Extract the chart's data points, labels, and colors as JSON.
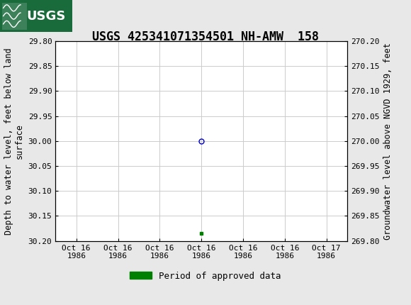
{
  "title": "USGS 425341071354501 NH-AMW  158",
  "ylabel_left": "Depth to water level, feet below land\nsurface",
  "ylabel_right": "Groundwater level above NGVD 1929, feet",
  "ylim_left_top": 29.8,
  "ylim_left_bottom": 30.2,
  "ylim_right_top": 270.2,
  "ylim_right_bottom": 269.8,
  "yticks_left": [
    29.8,
    29.85,
    29.9,
    29.95,
    30.0,
    30.05,
    30.1,
    30.15,
    30.2
  ],
  "yticks_right": [
    270.2,
    270.15,
    270.1,
    270.05,
    270.0,
    269.95,
    269.9,
    269.85,
    269.8
  ],
  "ytick_labels_left": [
    "29.80",
    "29.85",
    "29.90",
    "29.95",
    "30.00",
    "30.05",
    "30.10",
    "30.15",
    "30.20"
  ],
  "ytick_labels_right": [
    "270.20",
    "270.15",
    "270.10",
    "270.05",
    "270.00",
    "269.95",
    "269.90",
    "269.85",
    "269.80"
  ],
  "xtick_labels": [
    "Oct 16\n1986",
    "Oct 16\n1986",
    "Oct 16\n1986",
    "Oct 16\n1986",
    "Oct 16\n1986",
    "Oct 16\n1986",
    "Oct 17\n1986"
  ],
  "xtick_positions": [
    0,
    1,
    2,
    3,
    4,
    5,
    6
  ],
  "data_point_x": 3.0,
  "data_point_y": 30.0,
  "data_point_color": "#0000cc",
  "data_point_marker": "o",
  "data_point_facecolor": "none",
  "data_point_size": 5,
  "green_square_x": 3.0,
  "green_square_y": 30.185,
  "green_square_color": "#008000",
  "header_color": "#1a6b3c",
  "background_color": "#e8e8e8",
  "plot_bg_color": "#ffffff",
  "grid_color": "#cccccc",
  "legend_label": "Period of approved data",
  "legend_color": "#008000",
  "font_family": "monospace",
  "title_fontsize": 12,
  "tick_fontsize": 8,
  "ylabel_fontsize": 8.5
}
